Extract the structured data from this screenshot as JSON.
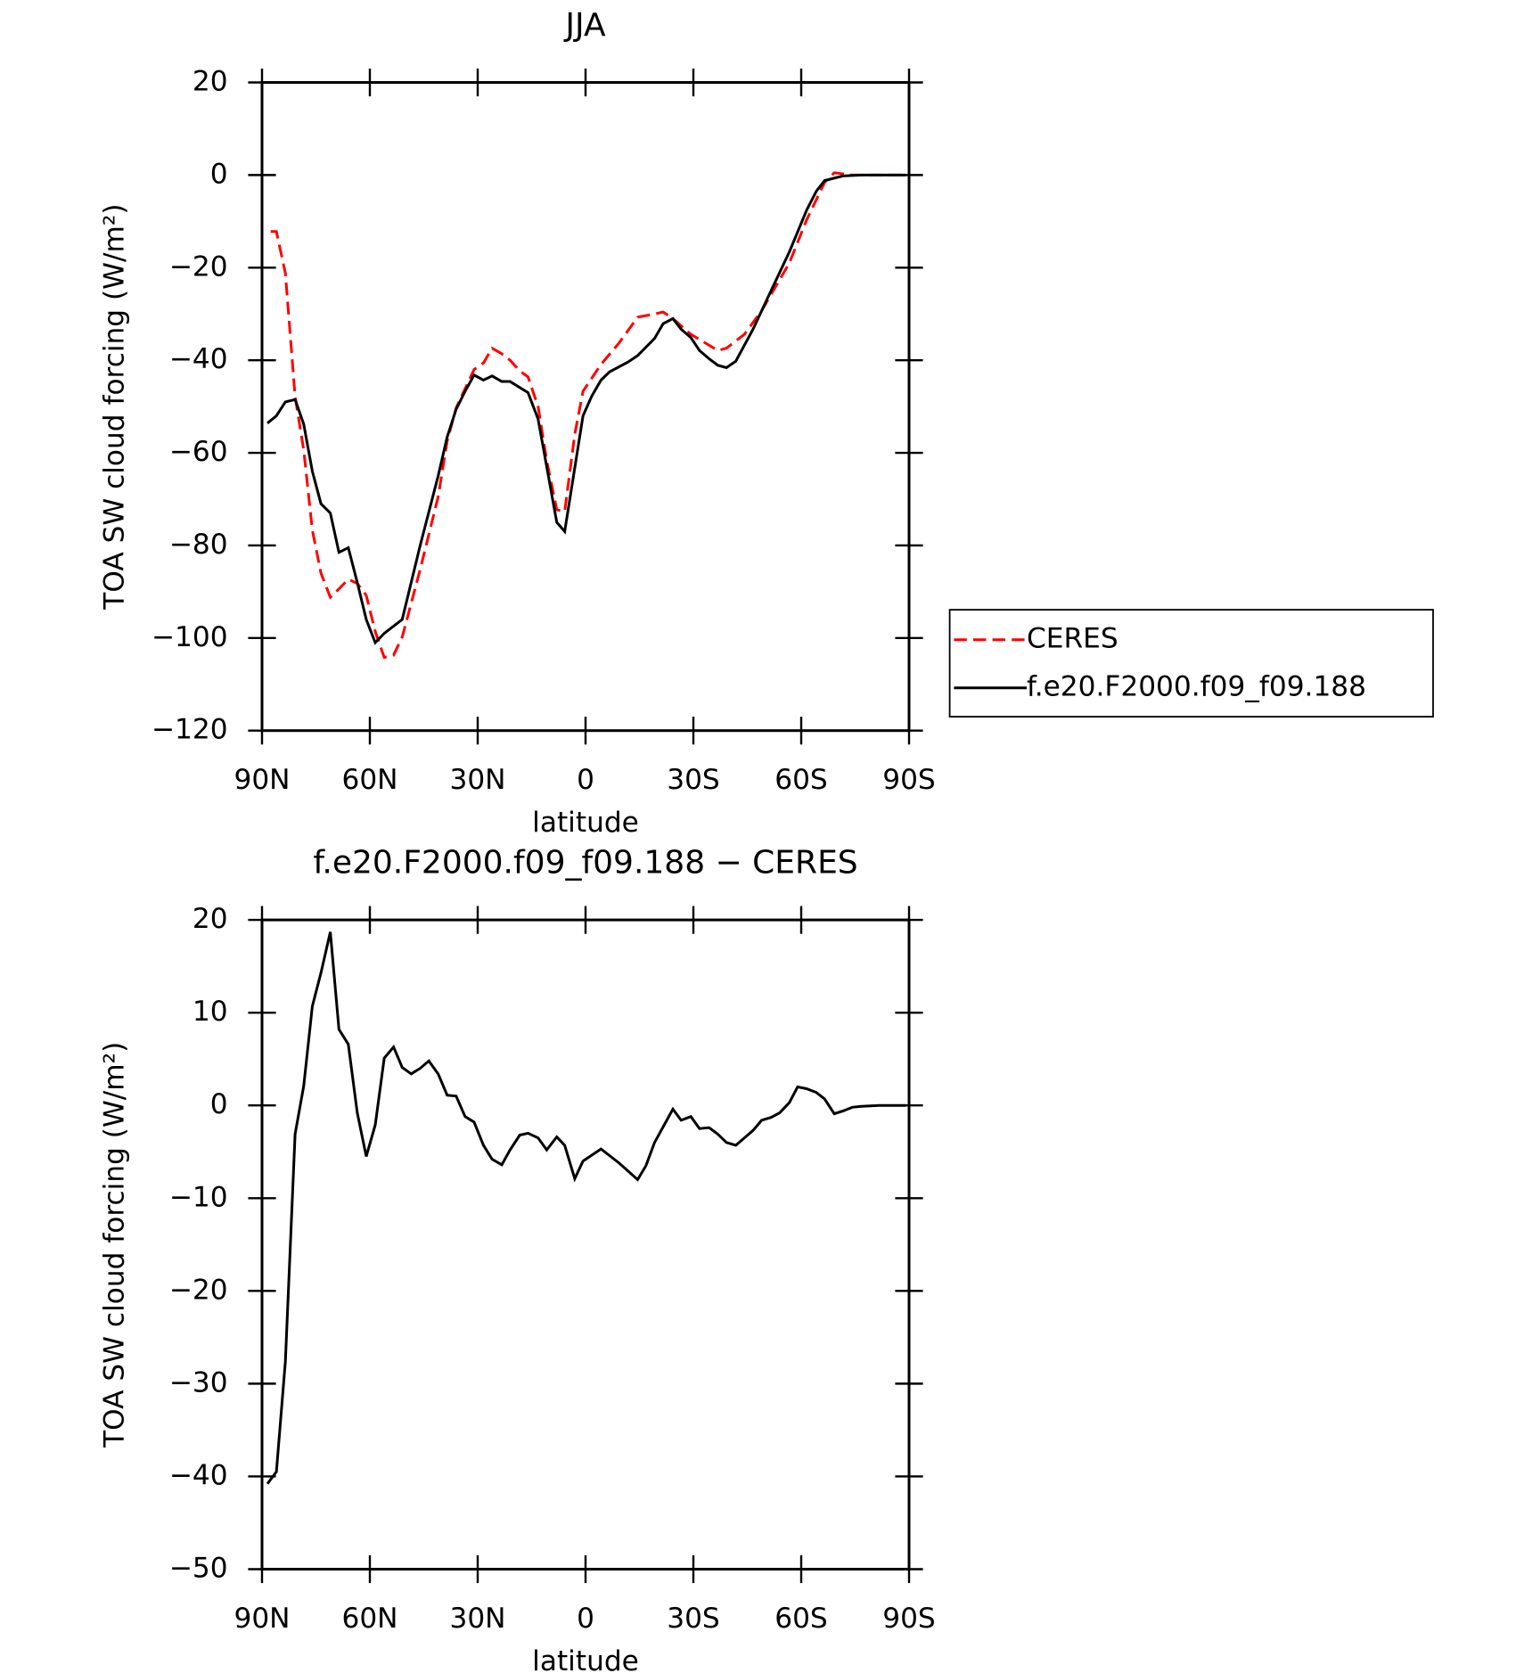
{
  "chart_data": [
    {
      "type": "line",
      "title": "JJA",
      "xlabel": "latitude",
      "ylabel": "TOA SW cloud forcing (W/m²)",
      "xlim": [
        90,
        -90
      ],
      "ylim": [
        -120,
        20
      ],
      "xticks": [
        {
          "value": 90,
          "label": "90N"
        },
        {
          "value": 60,
          "label": "60N"
        },
        {
          "value": 30,
          "label": "30N"
        },
        0,
        {
          "value": -30,
          "label": "30S"
        },
        {
          "value": -60,
          "label": "60S"
        },
        {
          "value": -90,
          "label": "90S"
        }
      ],
      "yticks": [
        {
          "value": -120,
          "label": "−120"
        },
        {
          "value": -100,
          "label": "−100"
        },
        {
          "value": -80,
          "label": "−80"
        },
        {
          "value": -60,
          "label": "−60"
        },
        {
          "value": -40,
          "label": "−40"
        },
        {
          "value": -20,
          "label": "−20"
        },
        0,
        20
      ],
      "legend": "right",
      "series": [
        {
          "name": "CERES",
          "color": "#ff0000",
          "linestyle": "dashed",
          "x": [
            87.6,
            86,
            83.5,
            80.8,
            78.4,
            76,
            73.6,
            71,
            68.6,
            66,
            63.5,
            61,
            58.5,
            56,
            53.4,
            51,
            46,
            41,
            38.5,
            36,
            31,
            28.4,
            26,
            23.3,
            21,
            18.3,
            16,
            13.2,
            10.8,
            8,
            5.8,
            3,
            0.7,
            -4.3,
            -9.3,
            -14.5,
            -19.2,
            -21.6,
            -24.3,
            -29.3,
            -36.8,
            -39.2,
            -44.2,
            -49,
            -56.7,
            -61.5,
            -66.5,
            -69.2,
            -74.2,
            -89
          ],
          "values": [
            -12.2,
            -12.2,
            -21.2,
            -47.8,
            -59.4,
            -76.7,
            -86,
            -91.2,
            -89.4,
            -87.3,
            -88.2,
            -90.8,
            -98.6,
            -104.2,
            -103.7,
            -99.8,
            -85.2,
            -69.5,
            -57.5,
            -50.3,
            -42,
            -40.6,
            -37.4,
            -38.6,
            -40,
            -42.3,
            -43.6,
            -50,
            -61.7,
            -72.3,
            -72.7,
            -56,
            -46.7,
            -40.9,
            -36.3,
            -30.7,
            -30,
            -29.6,
            -31,
            -34.4,
            -37.9,
            -37.4,
            -34.4,
            -29.3,
            -19,
            -9.7,
            -1.6,
            0.5,
            0,
            0
          ]
        },
        {
          "name": "f.e20.F2000.f09_f09.188",
          "color": "#000000",
          "linestyle": "solid",
          "x": [
            88.5,
            86,
            83.5,
            80.8,
            78.4,
            76,
            73.6,
            71,
            68.6,
            66,
            63.5,
            61,
            58.5,
            56,
            51,
            46,
            41,
            38.5,
            36,
            33.5,
            31,
            28.4,
            26,
            23.3,
            21,
            16,
            13.2,
            8,
            5.8,
            0.7,
            -1.7,
            -4.3,
            -6.7,
            -11.8,
            -14.5,
            -19.2,
            -21.6,
            -24.3,
            -26.6,
            -29.3,
            -31.7,
            -34.4,
            -36.8,
            -39.2,
            -41.8,
            -46.6,
            -51.6,
            -56.7,
            -61.5,
            -64.2,
            -66.5,
            -71.6,
            -76.7,
            -89
          ],
          "values": [
            -53.6,
            -52,
            -49,
            -48.5,
            -53.8,
            -64,
            -71,
            -73,
            -81.5,
            -80.5,
            -88,
            -96,
            -101,
            -99,
            -96,
            -80,
            -65,
            -56.6,
            -50.6,
            -46.7,
            -43.2,
            -44.3,
            -43.4,
            -44.6,
            -44.6,
            -47,
            -52.7,
            -75,
            -77,
            -52,
            -47.8,
            -44.3,
            -42.5,
            -40.4,
            -39,
            -35.3,
            -32.1,
            -31,
            -33.3,
            -35.1,
            -37.9,
            -39.7,
            -41.1,
            -41.6,
            -40.2,
            -33.3,
            -25,
            -16.6,
            -7.6,
            -3.5,
            -1.2,
            -0.2,
            0,
            0
          ]
        }
      ]
    },
    {
      "type": "line",
      "title": "f.e20.F2000.f09_f09.188 − CERES",
      "xlabel": "latitude",
      "ylabel": "TOA SW cloud forcing (W/m²)",
      "xlim": [
        90,
        -90
      ],
      "ylim": [
        -50,
        20
      ],
      "xticks": [
        {
          "value": 90,
          "label": "90N"
        },
        {
          "value": 60,
          "label": "60N"
        },
        {
          "value": 30,
          "label": "30N"
        },
        0,
        {
          "value": -30,
          "label": "30S"
        },
        {
          "value": -60,
          "label": "60S"
        },
        {
          "value": -90,
          "label": "90S"
        }
      ],
      "yticks": [
        {
          "value": -50,
          "label": "−50"
        },
        {
          "value": -40,
          "label": "−40"
        },
        {
          "value": -30,
          "label": "−30"
        },
        {
          "value": -20,
          "label": "−20"
        },
        {
          "value": -10,
          "label": "−10"
        },
        0,
        10,
        20
      ],
      "series": [
        {
          "color": "#000000",
          "linestyle": "solid",
          "x": [
            88.5,
            86,
            83.5,
            80.8,
            78.4,
            76,
            73.6,
            71,
            68.6,
            66,
            63.5,
            61,
            58.5,
            56,
            53.4,
            51,
            48.5,
            46,
            43.6,
            41,
            38.5,
            36,
            33.5,
            31,
            28.4,
            26,
            23.3,
            21,
            18.3,
            16,
            13.2,
            10.8,
            8,
            5.8,
            3,
            0.7,
            -4.3,
            -9.3,
            -14.5,
            -16.8,
            -19.2,
            -24.3,
            -26.6,
            -29.3,
            -31.7,
            -34.4,
            -36.8,
            -39.2,
            -41.8,
            -46.6,
            -49,
            -51.6,
            -54,
            -56.7,
            -59,
            -61.5,
            -64.2,
            -66.5,
            -69.2,
            -71.6,
            -74.2,
            -76.7,
            -81.7,
            -89
          ],
          "values": [
            -40.8,
            -39.5,
            -27.6,
            -3.1,
            2.1,
            10.7,
            14.3,
            18.7,
            8.2,
            6.6,
            -0.8,
            -5.5,
            -2.1,
            5.1,
            6.3,
            4.1,
            3.4,
            4,
            4.8,
            3.4,
            1.1,
            1,
            -1.2,
            -1.8,
            -4.3,
            -5.8,
            -6.4,
            -4.8,
            -3.2,
            -3,
            -3.5,
            -4.8,
            -3.4,
            -4.3,
            -7.9,
            -6,
            -4.7,
            -6.2,
            -8,
            -6.5,
            -4,
            -0.4,
            -1.6,
            -1.2,
            -2.5,
            -2.4,
            -3.1,
            -4,
            -4.3,
            -2.7,
            -1.6,
            -1.3,
            -0.8,
            0.3,
            2,
            1.8,
            1.4,
            0.7,
            -0.9,
            -0.6,
            -0.2,
            -0.1,
            0,
            0
          ]
        }
      ]
    }
  ]
}
